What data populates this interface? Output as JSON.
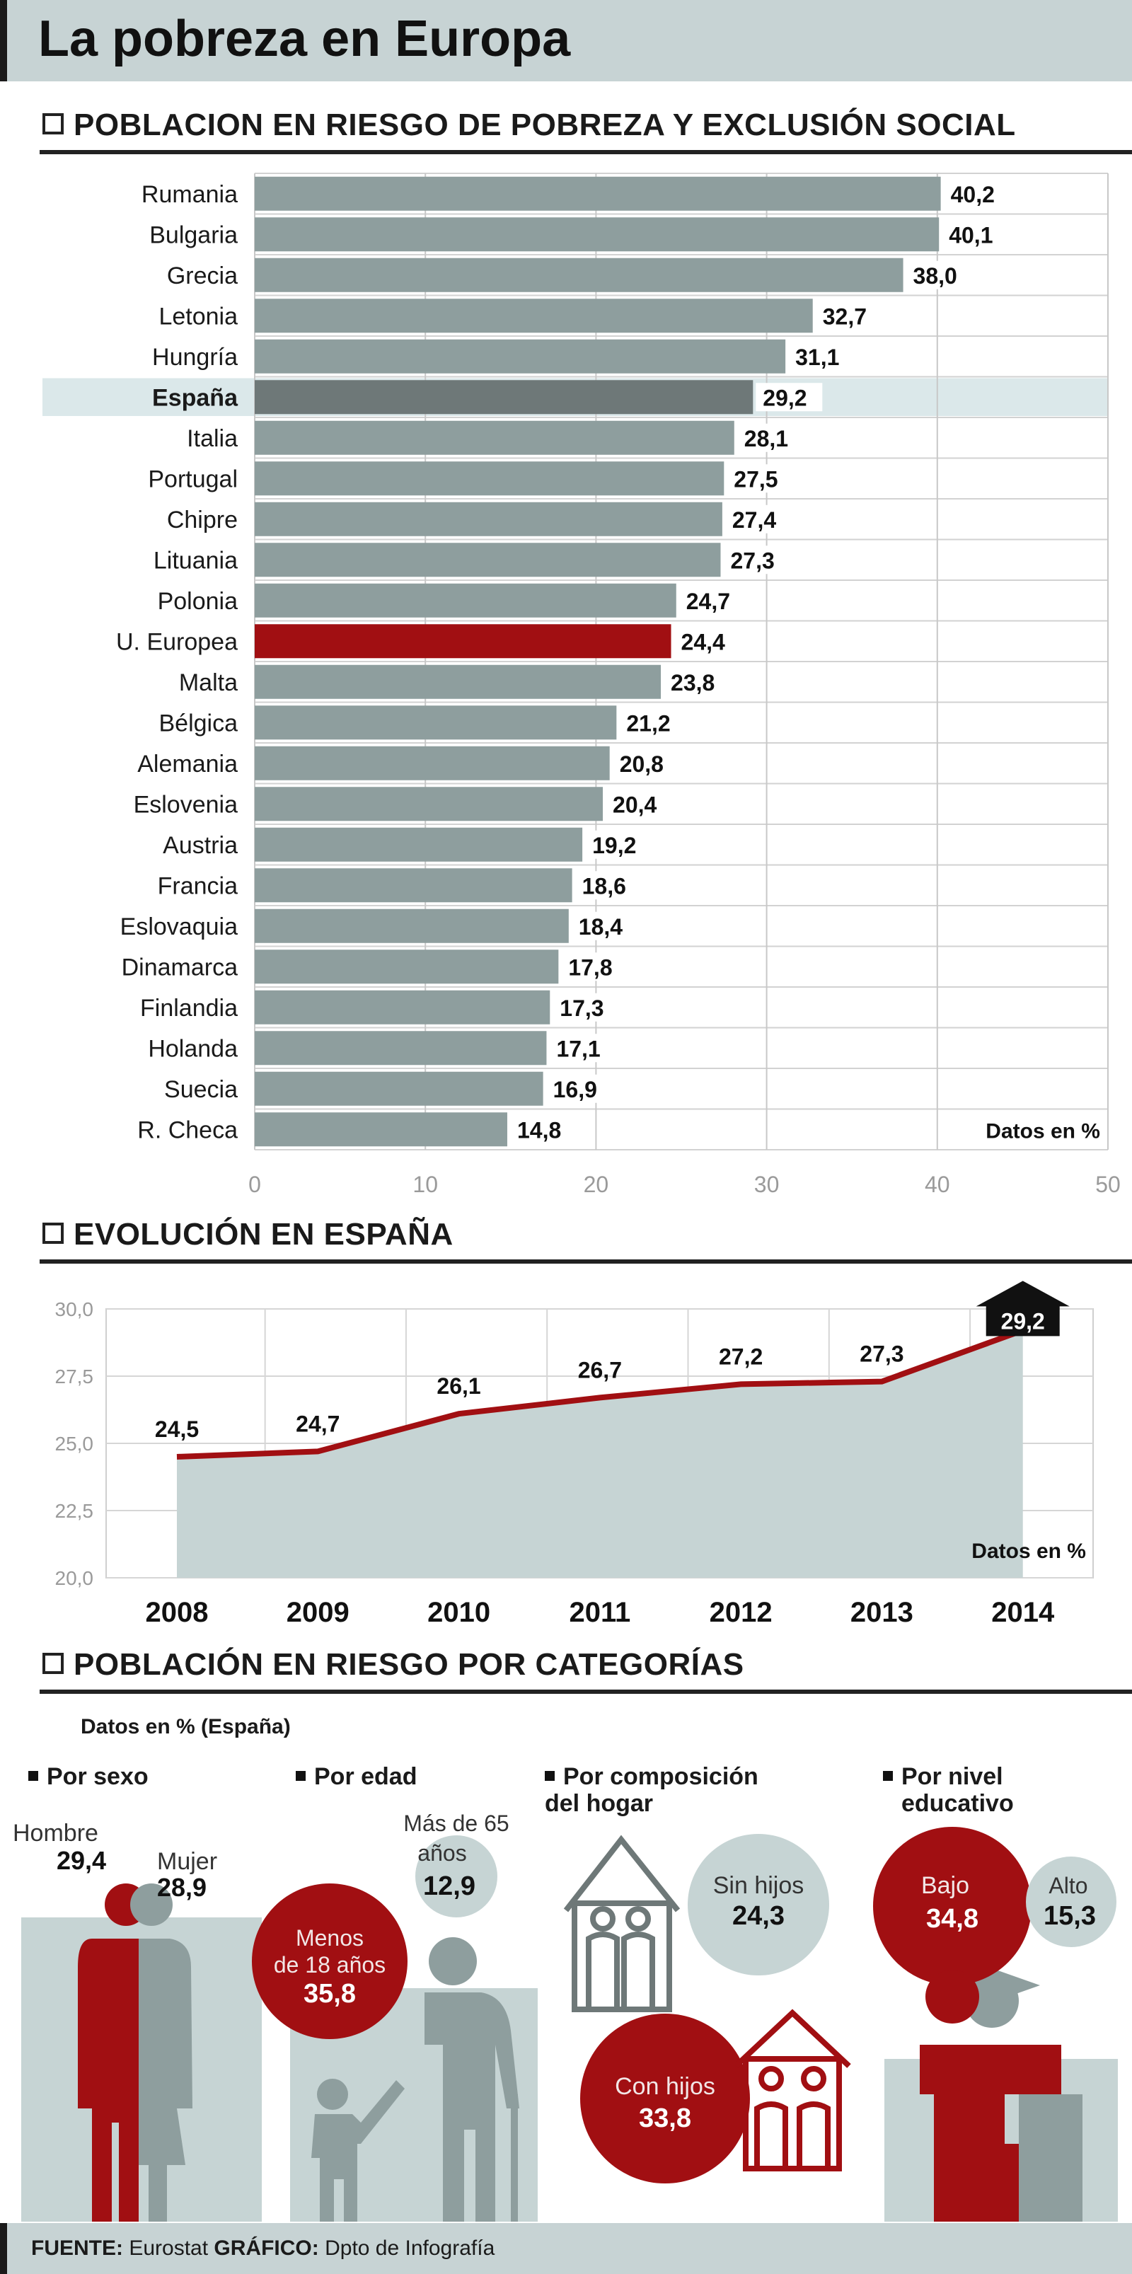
{
  "title": "La pobreza en Europa",
  "section1": {
    "heading": "POBLACION EN RIESGO DE POBREZA Y EXCLUSIÓN SOCIAL"
  },
  "section2": {
    "heading": "EVOLUCIÓN EN ESPAÑA"
  },
  "section3": {
    "heading": "POBLACIÓN EN RIESGO POR CATEGORÍAS",
    "note": "Datos en % (España)"
  },
  "colors": {
    "bar": "#8e9e9e",
    "highlight_bar": "#6e7878",
    "eu_bar": "#a10f12",
    "accent_red": "#a10f12",
    "panel": "#c6d4d4"
  },
  "chart_data": [
    {
      "type": "bar",
      "orientation": "horizontal",
      "categories": [
        "Rumania",
        "Bulgaria",
        "Grecia",
        "Letonia",
        "Hungría",
        "España",
        "Italia",
        "Portugal",
        "Chipre",
        "Lituania",
        "Polonia",
        "U. Europea",
        "Malta",
        "Bélgica",
        "Alemania",
        "Eslovenia",
        "Austria",
        "Francia",
        "Eslovaquia",
        "Dinamarca",
        "Finlandia",
        "Holanda",
        "Suecia",
        "R. Checa"
      ],
      "values": [
        40.2,
        40.1,
        38.0,
        32.7,
        31.1,
        29.2,
        28.1,
        27.5,
        27.4,
        27.3,
        24.7,
        24.4,
        23.8,
        21.2,
        20.8,
        20.4,
        19.2,
        18.6,
        18.4,
        17.8,
        17.3,
        17.1,
        16.9,
        14.8
      ],
      "value_labels": [
        "40,2",
        "40,1",
        "38,0",
        "32,7",
        "31,1",
        "29,2",
        "28,1",
        "27,5",
        "27,4",
        "27,3",
        "24,7",
        "24,4",
        "23,8",
        "21,2",
        "20,8",
        "20,4",
        "19,2",
        "18,6",
        "18,4",
        "17,8",
        "17,3",
        "17,1",
        "16,9",
        "14,8"
      ],
      "highlight": "España",
      "eu": "U. Europea",
      "xlim": [
        0,
        50
      ],
      "xticks": [
        "0",
        "10",
        "20",
        "30",
        "40",
        "50"
      ],
      "unit_note": "Datos en %",
      "grid": true
    },
    {
      "type": "area",
      "x": [
        "2008",
        "2009",
        "2010",
        "2011",
        "2012",
        "2013",
        "2014"
      ],
      "values": [
        24.5,
        24.7,
        26.1,
        26.7,
        27.2,
        27.3,
        29.2
      ],
      "value_labels": [
        "24,5",
        "24,7",
        "26,1",
        "26,7",
        "27,2",
        "27,3",
        "29,2"
      ],
      "ylim": [
        20,
        30
      ],
      "yticks": [
        "20,0",
        "22,5",
        "25,0",
        "27,5",
        "30,0"
      ],
      "unit_note": "Datos en %",
      "grid": true
    }
  ],
  "categories": {
    "sexo": {
      "heading": "Por sexo",
      "hombre_label": "Hombre",
      "hombre_value": "29,4",
      "mujer_label": "Mujer",
      "mujer_value": "28,9"
    },
    "edad": {
      "heading": "Por edad",
      "mayores_label_1": "Más de 65",
      "mayores_label_2": "años",
      "mayores_value": "12,9",
      "menores_label_1": "Menos",
      "menores_label_2": "de 18 años",
      "menores_value": "35,8"
    },
    "hogar": {
      "heading_1": "Por composición",
      "heading_2": "del hogar",
      "sin_label": "Sin hijos",
      "sin_value": "24,3",
      "con_label": "Con hijos",
      "con_value": "33,8"
    },
    "nivel": {
      "heading_1": "Por nivel",
      "heading_2": "educativo",
      "bajo_label": "Bajo",
      "bajo_value": "34,8",
      "alto_label": "Alto",
      "alto_value": "15,3"
    }
  },
  "footer": {
    "source_label": "FUENTE:",
    "source": "Eurostat",
    "graphic_label": "GRÁFICO:",
    "graphic": "Dpto de Infografía"
  }
}
